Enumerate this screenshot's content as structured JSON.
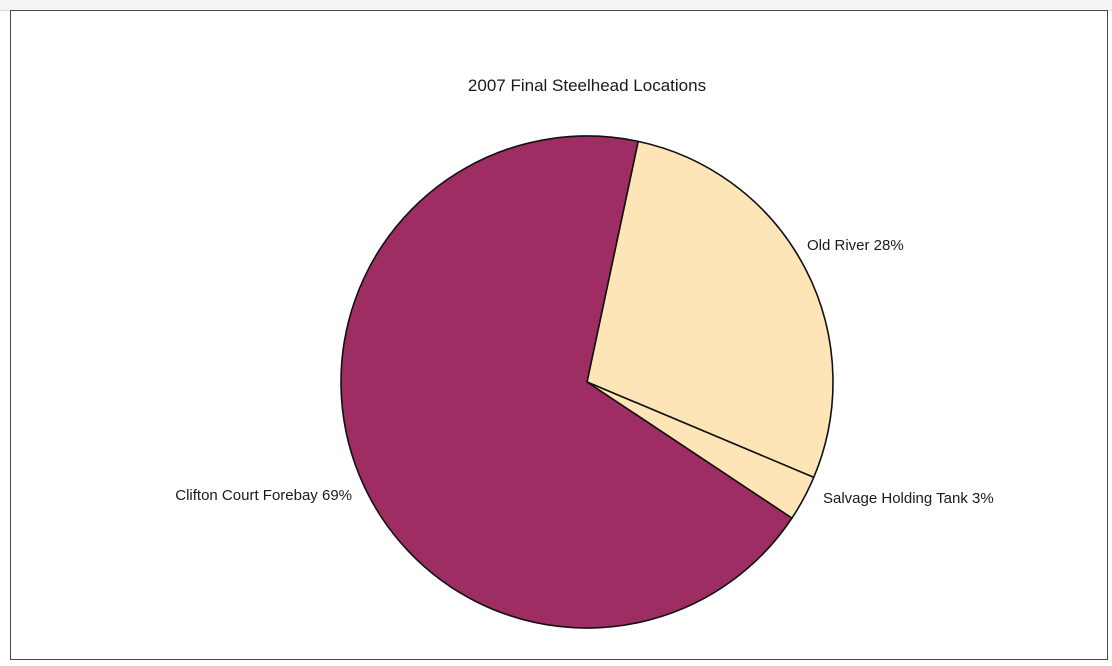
{
  "chart_data": {
    "type": "pie",
    "title": "2007 Final Steelhead Locations",
    "slices": [
      {
        "label": "Old River 28%",
        "name": "Old River",
        "value": 28,
        "color": "#fde5b8"
      },
      {
        "label": "Salvage Holding Tank 3%",
        "name": "Salvage Holding Tank",
        "value": 3,
        "color": "#fde5b8"
      },
      {
        "label": "Clifton Court Forebay 69%",
        "name": "Clifton Court Forebay",
        "value": 69,
        "color": "#9e2d63"
      }
    ],
    "legend": "none",
    "start": "top, clockwise"
  }
}
